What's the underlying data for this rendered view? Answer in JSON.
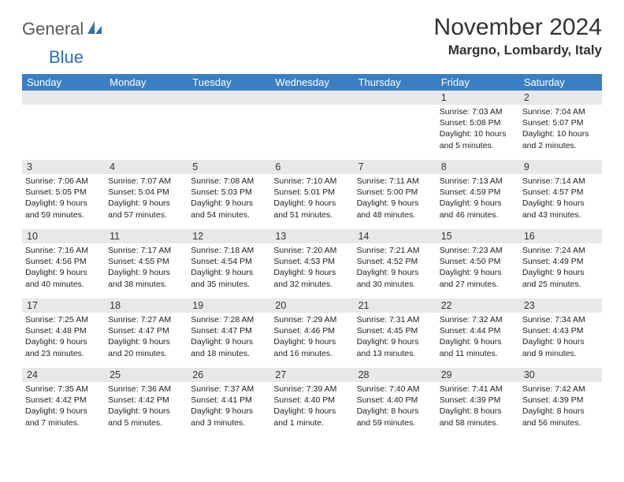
{
  "brand": {
    "general": "General",
    "blue": "Blue"
  },
  "title": "November 2024",
  "location": "Margno, Lombardy, Italy",
  "colors": {
    "header_bg": "#3a7fc4",
    "header_text": "#ffffff",
    "daynum_bg": "#e8e8e8",
    "page_bg": "#ffffff",
    "brand_gray": "#5a5a5a",
    "brand_blue": "#2d6fb5"
  },
  "day_headers": [
    "Sunday",
    "Monday",
    "Tuesday",
    "Wednesday",
    "Thursday",
    "Friday",
    "Saturday"
  ],
  "weeks": [
    [
      {
        "n": "",
        "sunrise": "",
        "sunset": "",
        "day": ""
      },
      {
        "n": "",
        "sunrise": "",
        "sunset": "",
        "day": ""
      },
      {
        "n": "",
        "sunrise": "",
        "sunset": "",
        "day": ""
      },
      {
        "n": "",
        "sunrise": "",
        "sunset": "",
        "day": ""
      },
      {
        "n": "",
        "sunrise": "",
        "sunset": "",
        "day": ""
      },
      {
        "n": "1",
        "sunrise": "Sunrise: 7:03 AM",
        "sunset": "Sunset: 5:08 PM",
        "day": "Daylight: 10 hours and 5 minutes."
      },
      {
        "n": "2",
        "sunrise": "Sunrise: 7:04 AM",
        "sunset": "Sunset: 5:07 PM",
        "day": "Daylight: 10 hours and 2 minutes."
      }
    ],
    [
      {
        "n": "3",
        "sunrise": "Sunrise: 7:06 AM",
        "sunset": "Sunset: 5:05 PM",
        "day": "Daylight: 9 hours and 59 minutes."
      },
      {
        "n": "4",
        "sunrise": "Sunrise: 7:07 AM",
        "sunset": "Sunset: 5:04 PM",
        "day": "Daylight: 9 hours and 57 minutes."
      },
      {
        "n": "5",
        "sunrise": "Sunrise: 7:08 AM",
        "sunset": "Sunset: 5:03 PM",
        "day": "Daylight: 9 hours and 54 minutes."
      },
      {
        "n": "6",
        "sunrise": "Sunrise: 7:10 AM",
        "sunset": "Sunset: 5:01 PM",
        "day": "Daylight: 9 hours and 51 minutes."
      },
      {
        "n": "7",
        "sunrise": "Sunrise: 7:11 AM",
        "sunset": "Sunset: 5:00 PM",
        "day": "Daylight: 9 hours and 48 minutes."
      },
      {
        "n": "8",
        "sunrise": "Sunrise: 7:13 AM",
        "sunset": "Sunset: 4:59 PM",
        "day": "Daylight: 9 hours and 46 minutes."
      },
      {
        "n": "9",
        "sunrise": "Sunrise: 7:14 AM",
        "sunset": "Sunset: 4:57 PM",
        "day": "Daylight: 9 hours and 43 minutes."
      }
    ],
    [
      {
        "n": "10",
        "sunrise": "Sunrise: 7:16 AM",
        "sunset": "Sunset: 4:56 PM",
        "day": "Daylight: 9 hours and 40 minutes."
      },
      {
        "n": "11",
        "sunrise": "Sunrise: 7:17 AM",
        "sunset": "Sunset: 4:55 PM",
        "day": "Daylight: 9 hours and 38 minutes."
      },
      {
        "n": "12",
        "sunrise": "Sunrise: 7:18 AM",
        "sunset": "Sunset: 4:54 PM",
        "day": "Daylight: 9 hours and 35 minutes."
      },
      {
        "n": "13",
        "sunrise": "Sunrise: 7:20 AM",
        "sunset": "Sunset: 4:53 PM",
        "day": "Daylight: 9 hours and 32 minutes."
      },
      {
        "n": "14",
        "sunrise": "Sunrise: 7:21 AM",
        "sunset": "Sunset: 4:52 PM",
        "day": "Daylight: 9 hours and 30 minutes."
      },
      {
        "n": "15",
        "sunrise": "Sunrise: 7:23 AM",
        "sunset": "Sunset: 4:50 PM",
        "day": "Daylight: 9 hours and 27 minutes."
      },
      {
        "n": "16",
        "sunrise": "Sunrise: 7:24 AM",
        "sunset": "Sunset: 4:49 PM",
        "day": "Daylight: 9 hours and 25 minutes."
      }
    ],
    [
      {
        "n": "17",
        "sunrise": "Sunrise: 7:25 AM",
        "sunset": "Sunset: 4:48 PM",
        "day": "Daylight: 9 hours and 23 minutes."
      },
      {
        "n": "18",
        "sunrise": "Sunrise: 7:27 AM",
        "sunset": "Sunset: 4:47 PM",
        "day": "Daylight: 9 hours and 20 minutes."
      },
      {
        "n": "19",
        "sunrise": "Sunrise: 7:28 AM",
        "sunset": "Sunset: 4:47 PM",
        "day": "Daylight: 9 hours and 18 minutes."
      },
      {
        "n": "20",
        "sunrise": "Sunrise: 7:29 AM",
        "sunset": "Sunset: 4:46 PM",
        "day": "Daylight: 9 hours and 16 minutes."
      },
      {
        "n": "21",
        "sunrise": "Sunrise: 7:31 AM",
        "sunset": "Sunset: 4:45 PM",
        "day": "Daylight: 9 hours and 13 minutes."
      },
      {
        "n": "22",
        "sunrise": "Sunrise: 7:32 AM",
        "sunset": "Sunset: 4:44 PM",
        "day": "Daylight: 9 hours and 11 minutes."
      },
      {
        "n": "23",
        "sunrise": "Sunrise: 7:34 AM",
        "sunset": "Sunset: 4:43 PM",
        "day": "Daylight: 9 hours and 9 minutes."
      }
    ],
    [
      {
        "n": "24",
        "sunrise": "Sunrise: 7:35 AM",
        "sunset": "Sunset: 4:42 PM",
        "day": "Daylight: 9 hours and 7 minutes."
      },
      {
        "n": "25",
        "sunrise": "Sunrise: 7:36 AM",
        "sunset": "Sunset: 4:42 PM",
        "day": "Daylight: 9 hours and 5 minutes."
      },
      {
        "n": "26",
        "sunrise": "Sunrise: 7:37 AM",
        "sunset": "Sunset: 4:41 PM",
        "day": "Daylight: 9 hours and 3 minutes."
      },
      {
        "n": "27",
        "sunrise": "Sunrise: 7:39 AM",
        "sunset": "Sunset: 4:40 PM",
        "day": "Daylight: 9 hours and 1 minute."
      },
      {
        "n": "28",
        "sunrise": "Sunrise: 7:40 AM",
        "sunset": "Sunset: 4:40 PM",
        "day": "Daylight: 8 hours and 59 minutes."
      },
      {
        "n": "29",
        "sunrise": "Sunrise: 7:41 AM",
        "sunset": "Sunset: 4:39 PM",
        "day": "Daylight: 8 hours and 58 minutes."
      },
      {
        "n": "30",
        "sunrise": "Sunrise: 7:42 AM",
        "sunset": "Sunset: 4:39 PM",
        "day": "Daylight: 8 hours and 56 minutes."
      }
    ]
  ]
}
